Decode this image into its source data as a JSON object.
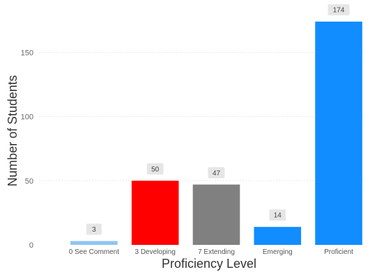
{
  "chart_data": {
    "type": "bar",
    "title": "",
    "xlabel": "Proficiency Level",
    "ylabel": "Number of Students",
    "categories": [
      "0 See Comment",
      "3 Developing",
      "7 Extending",
      "Emerging",
      "Proficient"
    ],
    "values": [
      3,
      50,
      47,
      14,
      174
    ],
    "data_labels": [
      "3",
      "50",
      "47",
      "14",
      "174"
    ],
    "colors": [
      "#8EC5F2",
      "#FF0000",
      "#808080",
      "#118DFF",
      "#118DFF"
    ],
    "ylim": [
      0,
      180
    ],
    "yticks": [
      0,
      50,
      100,
      150
    ],
    "ytick_labels": [
      "0",
      "50",
      "100",
      "150"
    ],
    "grid": true,
    "legend": "none",
    "label_box_color": "#E6E6E6"
  }
}
